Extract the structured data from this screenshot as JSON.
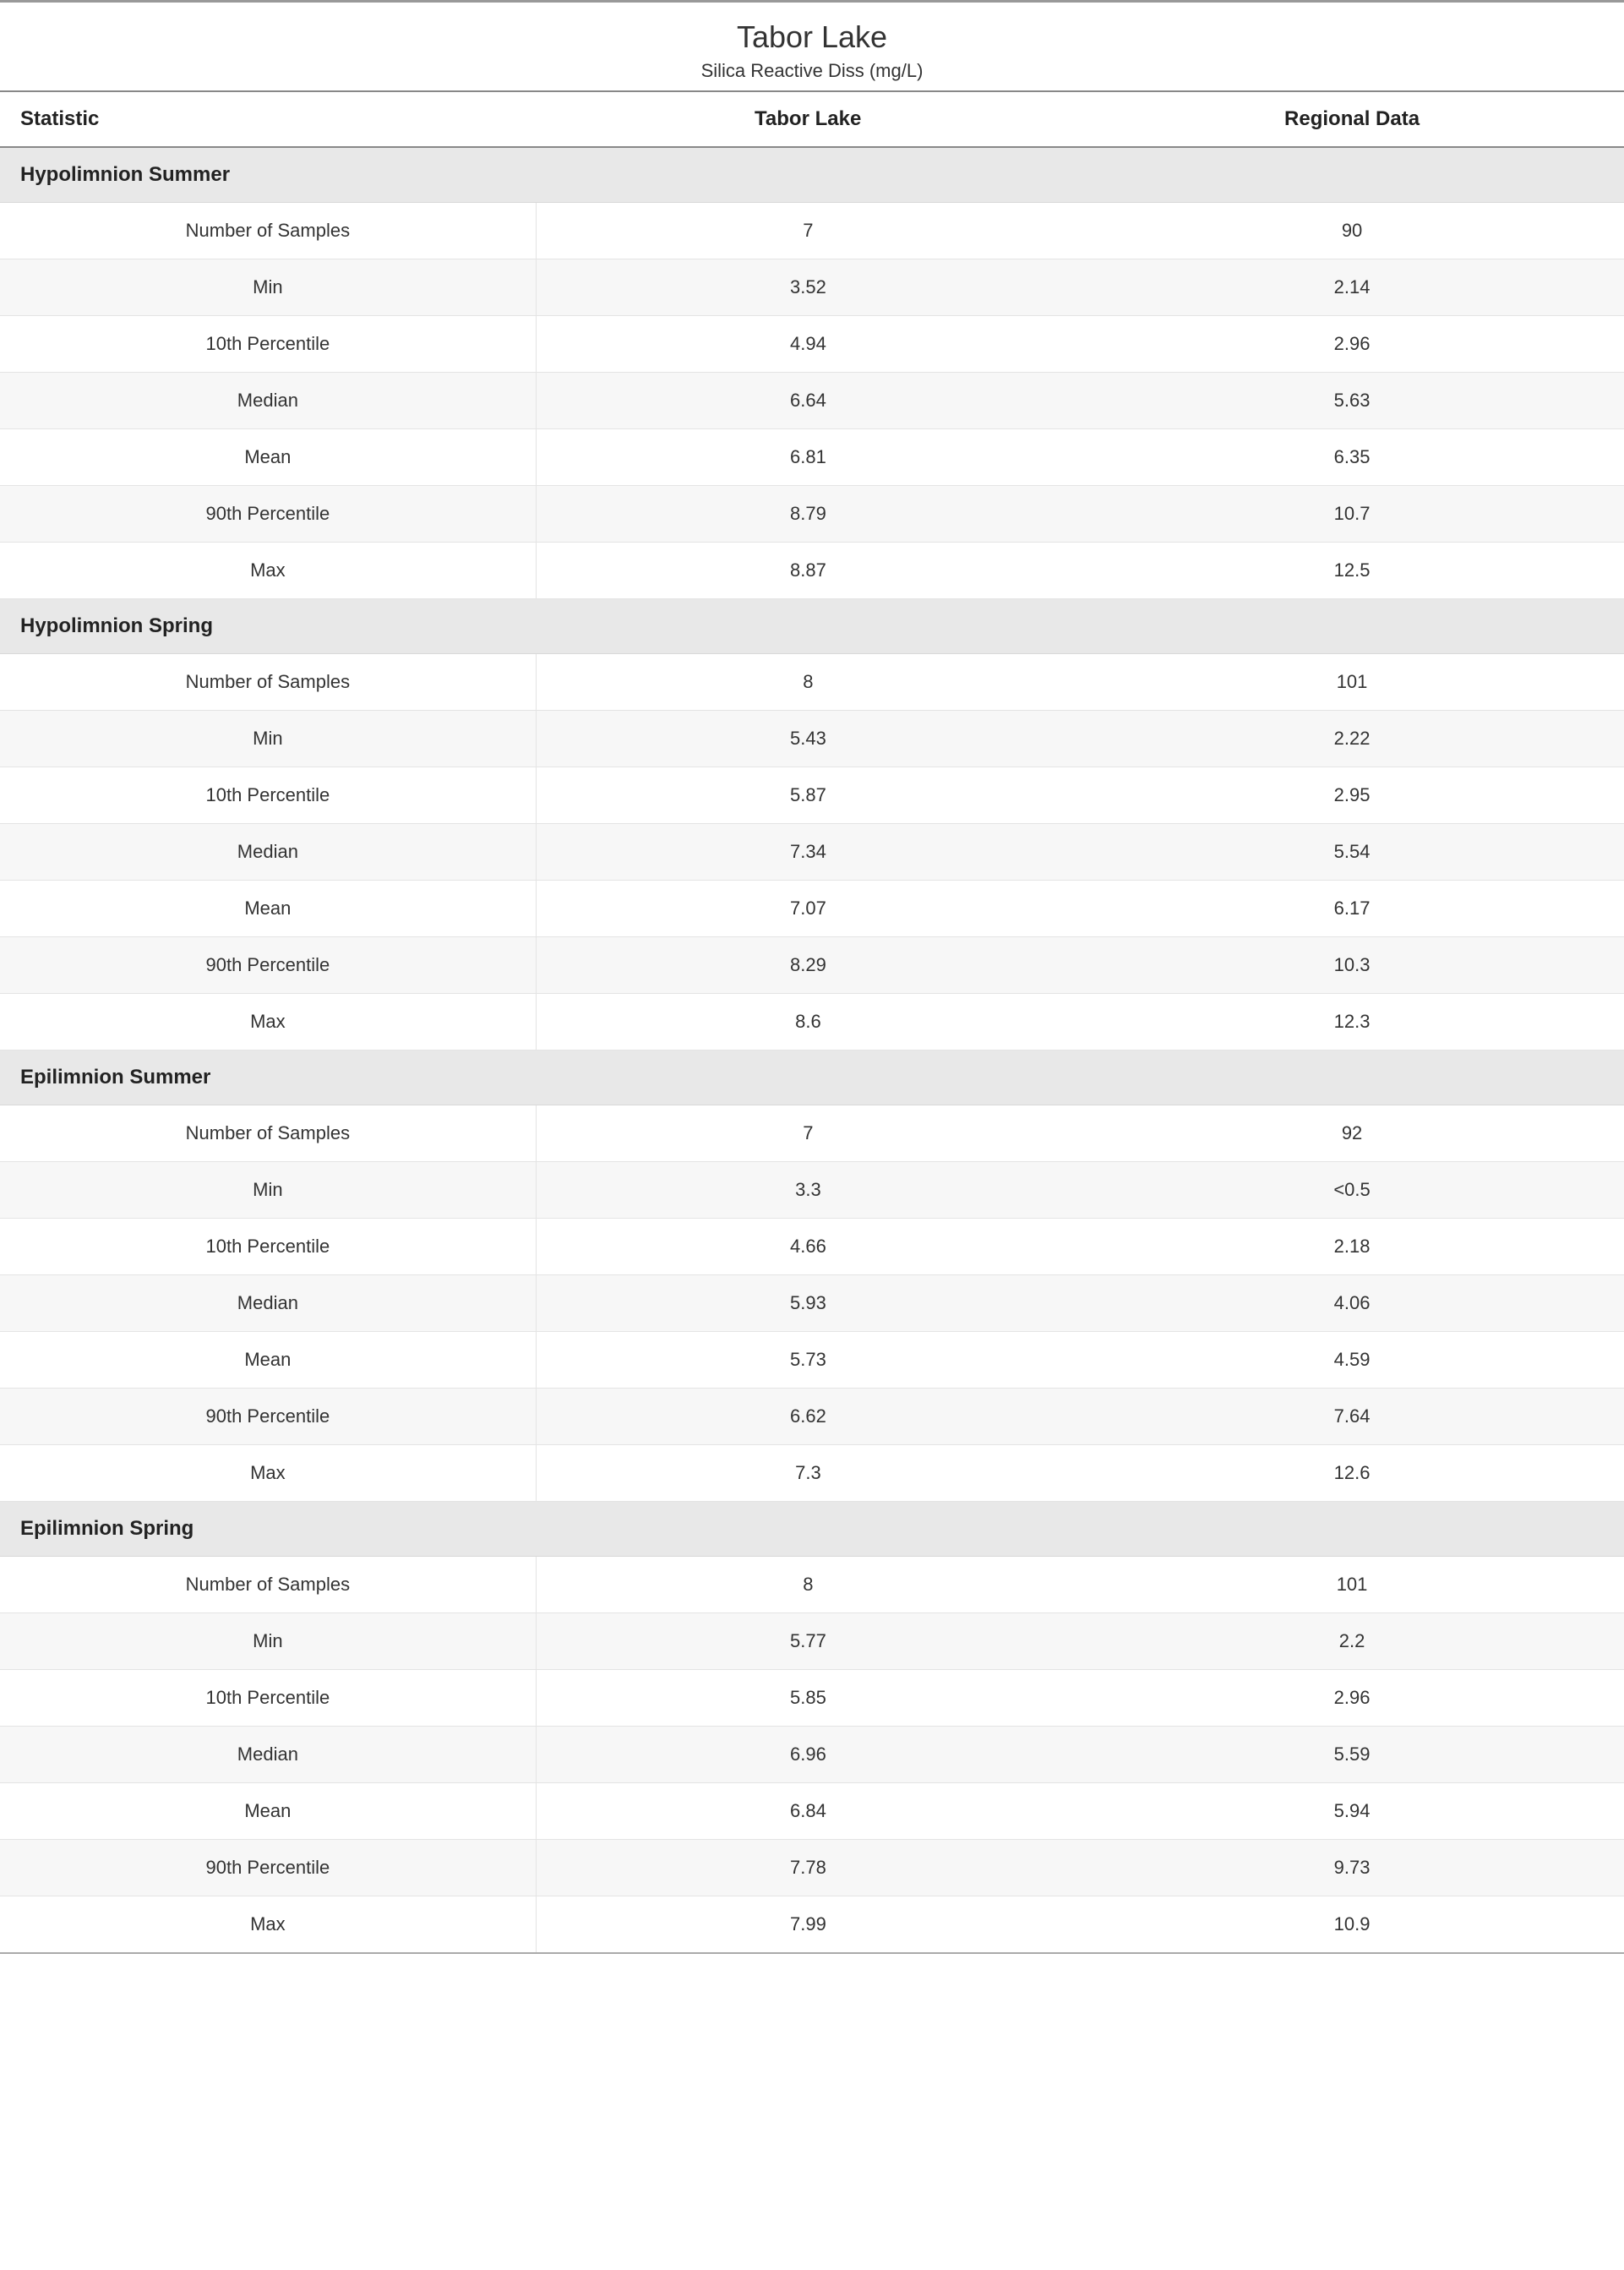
{
  "header": {
    "title": "Tabor Lake",
    "subtitle": "Silica Reactive Diss (mg/L)"
  },
  "columns": {
    "stat": "Statistic",
    "local": "Tabor Lake",
    "regional": "Regional Data"
  },
  "sections": [
    {
      "name": "Hypolimnion Summer",
      "rows": [
        {
          "stat": "Number of Samples",
          "local": "7",
          "regional": "90"
        },
        {
          "stat": "Min",
          "local": "3.52",
          "regional": "2.14"
        },
        {
          "stat": "10th Percentile",
          "local": "4.94",
          "regional": "2.96"
        },
        {
          "stat": "Median",
          "local": "6.64",
          "regional": "5.63"
        },
        {
          "stat": "Mean",
          "local": "6.81",
          "regional": "6.35"
        },
        {
          "stat": "90th Percentile",
          "local": "8.79",
          "regional": "10.7"
        },
        {
          "stat": "Max",
          "local": "8.87",
          "regional": "12.5"
        }
      ]
    },
    {
      "name": "Hypolimnion Spring",
      "rows": [
        {
          "stat": "Number of Samples",
          "local": "8",
          "regional": "101"
        },
        {
          "stat": "Min",
          "local": "5.43",
          "regional": "2.22"
        },
        {
          "stat": "10th Percentile",
          "local": "5.87",
          "regional": "2.95"
        },
        {
          "stat": "Median",
          "local": "7.34",
          "regional": "5.54"
        },
        {
          "stat": "Mean",
          "local": "7.07",
          "regional": "6.17"
        },
        {
          "stat": "90th Percentile",
          "local": "8.29",
          "regional": "10.3"
        },
        {
          "stat": "Max",
          "local": "8.6",
          "regional": "12.3"
        }
      ]
    },
    {
      "name": "Epilimnion Summer",
      "rows": [
        {
          "stat": "Number of Samples",
          "local": "7",
          "regional": "92"
        },
        {
          "stat": "Min",
          "local": "3.3",
          "regional": "<0.5"
        },
        {
          "stat": "10th Percentile",
          "local": "4.66",
          "regional": "2.18"
        },
        {
          "stat": "Median",
          "local": "5.93",
          "regional": "4.06"
        },
        {
          "stat": "Mean",
          "local": "5.73",
          "regional": "4.59"
        },
        {
          "stat": "90th Percentile",
          "local": "6.62",
          "regional": "7.64"
        },
        {
          "stat": "Max",
          "local": "7.3",
          "regional": "12.6"
        }
      ]
    },
    {
      "name": "Epilimnion Spring",
      "rows": [
        {
          "stat": "Number of Samples",
          "local": "8",
          "regional": "101"
        },
        {
          "stat": "Min",
          "local": "5.77",
          "regional": "2.2"
        },
        {
          "stat": "10th Percentile",
          "local": "5.85",
          "regional": "2.96"
        },
        {
          "stat": "Median",
          "local": "6.96",
          "regional": "5.59"
        },
        {
          "stat": "Mean",
          "local": "6.84",
          "regional": "5.94"
        },
        {
          "stat": "90th Percentile",
          "local": "7.78",
          "regional": "9.73"
        },
        {
          "stat": "Max",
          "local": "7.99",
          "regional": "10.9"
        }
      ]
    }
  ],
  "styling": {
    "type": "table",
    "background_color": "#ffffff",
    "section_header_bg": "#e8e8e8",
    "row_alt_bg": "#f7f7f7",
    "border_color": "#e4e4e4",
    "top_rule_color": "#999999",
    "header_rule_color": "#888888",
    "text_color": "#333333",
    "header_fontsize_pt": 18,
    "body_fontsize_pt": 16,
    "title_fontsize_pt": 27,
    "subtitle_fontsize_pt": 16,
    "column_widths_pct": [
      33,
      33.5,
      33.5
    ],
    "column_align": [
      "left-header/center-body",
      "center",
      "center"
    ]
  }
}
